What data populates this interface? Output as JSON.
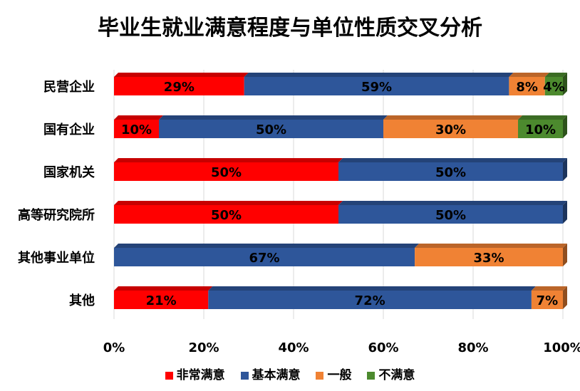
{
  "chart_data": {
    "type": "bar",
    "orientation": "horizontal",
    "stacked": "percent",
    "title": "毕业生就业满意程度与单位性质交叉分析",
    "categories": [
      "民营企业",
      "国有企业",
      "国家机关",
      "高等研究院所",
      "其他事业单位",
      "其他"
    ],
    "series": [
      {
        "name": "非常满意",
        "color": "#ff0000",
        "values": [
          29,
          10,
          50,
          50,
          0,
          21
        ]
      },
      {
        "name": "基本满意",
        "color": "#2e569a",
        "values": [
          59,
          50,
          50,
          50,
          67,
          72
        ]
      },
      {
        "name": "一般",
        "color": "#f08234",
        "values": [
          8,
          30,
          0,
          0,
          33,
          7
        ]
      },
      {
        "name": "不满意",
        "color": "#4c8a2e",
        "values": [
          4,
          10,
          0,
          0,
          0,
          0
        ]
      }
    ],
    "x_ticks": [
      "0%",
      "20%",
      "40%",
      "60%",
      "80%",
      "100%"
    ],
    "xlim": [
      0,
      100
    ],
    "grid": true,
    "legend_position": "bottom"
  }
}
